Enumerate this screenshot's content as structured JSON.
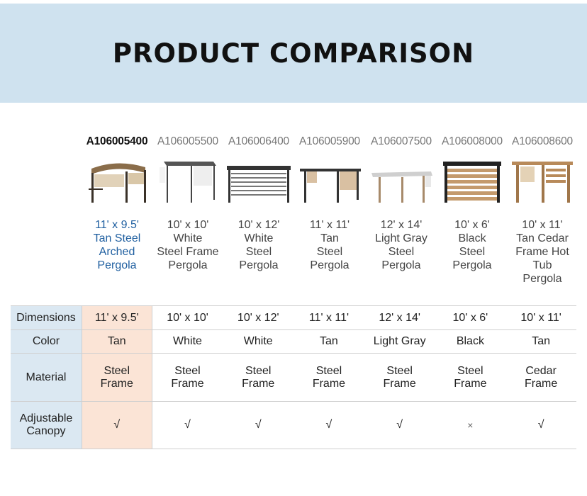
{
  "banner": {
    "title": "PRODUCT COMPARISON"
  },
  "products": [
    {
      "sku": "A106005400",
      "name_lines": [
        "11' x 9.5'",
        "Tan Steel",
        "Arched",
        "Pergola"
      ],
      "active": true
    },
    {
      "sku": "A106005500",
      "name_lines": [
        "10' x 10'",
        "White",
        "Steel Frame",
        "Pergola"
      ]
    },
    {
      "sku": "A106006400",
      "name_lines": [
        "10' x 12'",
        "White",
        "Steel",
        "Pergola"
      ]
    },
    {
      "sku": "A106005900",
      "name_lines": [
        "11' x 11'",
        "Tan",
        "Steel",
        "Pergola"
      ]
    },
    {
      "sku": "A106007500",
      "name_lines": [
        "12' x 14'",
        "Light Gray",
        "Steel",
        "Pergola"
      ]
    },
    {
      "sku": "A106008000",
      "name_lines": [
        "10' x 6'",
        "Black",
        "Steel",
        "Pergola"
      ]
    },
    {
      "sku": "A106008600",
      "name_lines": [
        "10' x 11'",
        "Tan Cedar",
        "Frame Hot",
        "Tub",
        "Pergola"
      ]
    }
  ],
  "table": {
    "row_labels": {
      "dimensions": "Dimensions",
      "color": "Color",
      "material": [
        "Material"
      ],
      "canopy": [
        "Adjustable",
        "Canopy"
      ]
    },
    "dimensions": [
      "11' x 9.5'",
      "10' x 10'",
      "10' x 12'",
      "11' x 11'",
      "12' x 14'",
      "10' x 6'",
      "10' x 11'"
    ],
    "color": [
      "Tan",
      "White",
      "White",
      "Tan",
      "Light Gray",
      "Black",
      "Tan"
    ],
    "material": [
      [
        "Steel",
        "Frame"
      ],
      [
        "Steel",
        "Frame"
      ],
      [
        "Steel",
        "Frame"
      ],
      [
        "Steel",
        "Frame"
      ],
      [
        "Steel",
        "Frame"
      ],
      [
        "Steel",
        "Frame"
      ],
      [
        "Cedar",
        "Frame"
      ]
    ],
    "canopy": [
      "√",
      "√",
      "√",
      "√",
      "√",
      "×",
      "√"
    ]
  },
  "colors": {
    "banner_bg": "#cfe2ef",
    "highlight": "#fbe4d6",
    "label_bg": "#dbe8f2",
    "active_text": "#1f5fa0"
  }
}
